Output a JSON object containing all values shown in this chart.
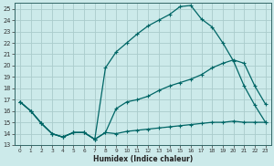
{
  "xlabel": "Humidex (Indice chaleur)",
  "bg_color": "#cceaea",
  "grid_color": "#aacccc",
  "line_color": "#006666",
  "xlim": [
    -0.5,
    23.5
  ],
  "ylim": [
    13,
    25.5
  ],
  "xticks": [
    0,
    1,
    2,
    3,
    4,
    5,
    6,
    7,
    8,
    9,
    10,
    11,
    12,
    13,
    14,
    15,
    16,
    17,
    18,
    19,
    20,
    21,
    22,
    23
  ],
  "yticks": [
    13,
    14,
    15,
    16,
    17,
    18,
    19,
    20,
    21,
    22,
    23,
    24,
    25
  ],
  "line_top_x": [
    0,
    1,
    2,
    3,
    4,
    5,
    6,
    7,
    8,
    9,
    10,
    11,
    12,
    13,
    14,
    15,
    16,
    17,
    18,
    19,
    20,
    21,
    22,
    23
  ],
  "line_top_y": [
    16.8,
    16.0,
    14.9,
    14.0,
    13.7,
    14.1,
    14.1,
    13.5,
    19.8,
    21.2,
    22.0,
    22.8,
    23.5,
    24.0,
    24.5,
    25.2,
    25.3,
    24.1,
    23.4,
    22.0,
    20.4,
    18.2,
    16.5,
    15.0
  ],
  "line_mid_x": [
    0,
    1,
    2,
    3,
    4,
    5,
    6,
    7,
    8,
    9,
    10,
    11,
    12,
    13,
    14,
    15,
    16,
    17,
    18,
    19,
    20,
    21,
    22,
    23
  ],
  "line_mid_y": [
    16.8,
    16.0,
    14.9,
    14.0,
    13.7,
    14.1,
    14.1,
    13.5,
    14.1,
    16.2,
    16.8,
    17.0,
    17.3,
    17.8,
    18.2,
    18.5,
    18.8,
    19.2,
    19.8,
    20.2,
    20.5,
    20.2,
    18.2,
    16.6
  ],
  "line_bot_x": [
    0,
    1,
    2,
    3,
    4,
    5,
    6,
    7,
    8,
    9,
    10,
    11,
    12,
    13,
    14,
    15,
    16,
    17,
    18,
    19,
    20,
    21,
    22,
    23
  ],
  "line_bot_y": [
    16.8,
    16.0,
    14.9,
    14.0,
    13.7,
    14.1,
    14.1,
    13.5,
    14.1,
    14.0,
    14.2,
    14.3,
    14.4,
    14.5,
    14.6,
    14.7,
    14.8,
    14.9,
    15.0,
    15.0,
    15.1,
    15.0,
    15.0,
    15.0
  ]
}
